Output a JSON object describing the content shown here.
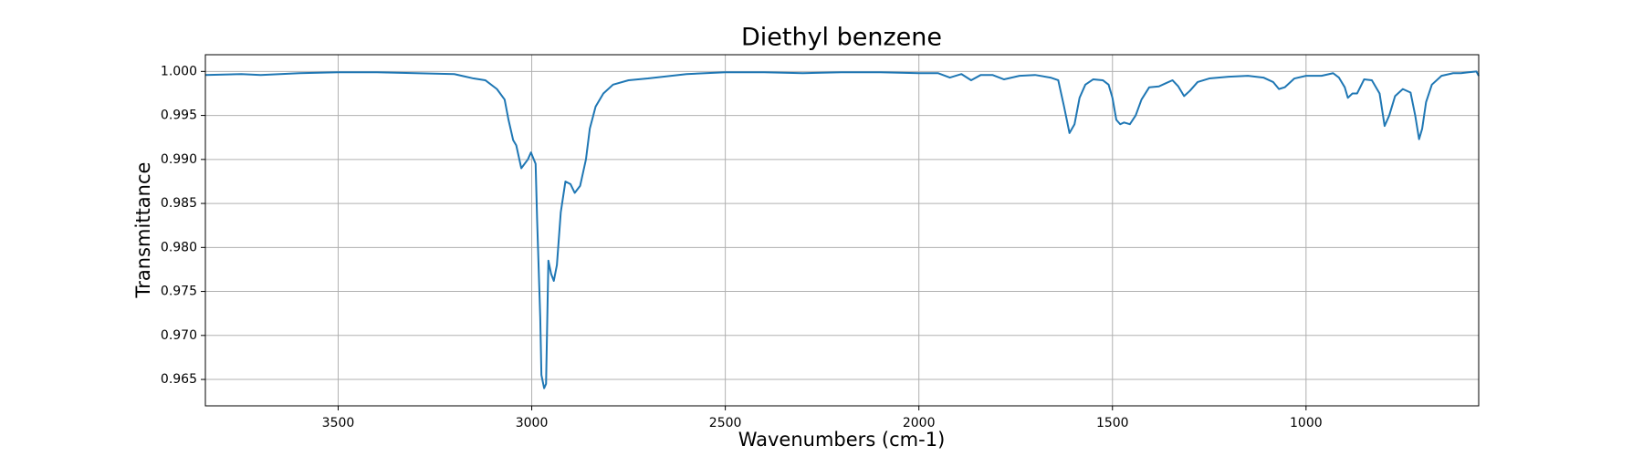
{
  "chart_data": {
    "type": "line",
    "title": "Diethyl benzene",
    "xlabel": "Wavenumbers (cm-1)",
    "ylabel": "Transmittance",
    "color": "#1f77b4",
    "grid": true,
    "xlim": [
      3843,
      554
    ],
    "ylim": [
      0.962,
      1.0019
    ],
    "xticks": [
      3500,
      3000,
      2500,
      2000,
      1500,
      1000
    ],
    "yticks": [
      0.965,
      {
        "value": 0.97,
        "label": "0.970"
      },
      0.975,
      {
        "value": 0.98,
        "label": "0.980"
      },
      0.985,
      {
        "value": 0.99,
        "label": "0.990"
      },
      0.995,
      {
        "value": 1.0,
        "label": "1.000"
      }
    ],
    "x": [
      3843,
      3750,
      3700,
      3600,
      3500,
      3400,
      3300,
      3200,
      3150,
      3120,
      3090,
      3070,
      3060,
      3048,
      3040,
      3027,
      3010,
      3002,
      2990,
      2986,
      2978,
      2975,
      2968,
      2963,
      2957,
      2950,
      2943,
      2935,
      2925,
      2913,
      2900,
      2889,
      2875,
      2860,
      2850,
      2835,
      2815,
      2790,
      2750,
      2700,
      2600,
      2500,
      2400,
      2300,
      2200,
      2100,
      2000,
      1950,
      1920,
      1890,
      1865,
      1840,
      1810,
      1780,
      1740,
      1700,
      1660,
      1640,
      1625,
      1611,
      1598,
      1585,
      1570,
      1550,
      1525,
      1510,
      1500,
      1490,
      1480,
      1470,
      1455,
      1440,
      1425,
      1405,
      1380,
      1365,
      1345,
      1330,
      1315,
      1300,
      1280,
      1250,
      1200,
      1150,
      1110,
      1085,
      1070,
      1055,
      1030,
      1000,
      960,
      930,
      915,
      900,
      892,
      880,
      868,
      850,
      830,
      810,
      797,
      785,
      770,
      750,
      730,
      718,
      708,
      700,
      690,
      675,
      650,
      620,
      600,
      580,
      560,
      554
    ],
    "values": [
      0.9996,
      0.9997,
      0.9996,
      0.9998,
      0.9999,
      0.9999,
      0.9998,
      0.9997,
      0.9992,
      0.999,
      0.998,
      0.9968,
      0.9945,
      0.9922,
      0.9916,
      0.989,
      0.99,
      0.9908,
      0.9895,
      0.983,
      0.972,
      0.9655,
      0.964,
      0.9645,
      0.9785,
      0.977,
      0.9762,
      0.978,
      0.984,
      0.9875,
      0.9872,
      0.9862,
      0.987,
      0.99,
      0.9935,
      0.996,
      0.9975,
      0.9985,
      0.999,
      0.9992,
      0.9997,
      0.9999,
      0.9999,
      0.9998,
      0.9999,
      0.9999,
      0.9998,
      0.9998,
      0.9993,
      0.9997,
      0.999,
      0.9996,
      0.9996,
      0.9991,
      0.9995,
      0.9996,
      0.9993,
      0.999,
      0.996,
      0.993,
      0.994,
      0.997,
      0.9985,
      0.9991,
      0.999,
      0.9985,
      0.997,
      0.9945,
      0.994,
      0.9942,
      0.994,
      0.995,
      0.9968,
      0.9982,
      0.9983,
      0.9986,
      0.999,
      0.9983,
      0.9972,
      0.9978,
      0.9988,
      0.9992,
      0.9994,
      0.9995,
      0.9993,
      0.9988,
      0.998,
      0.9982,
      0.9992,
      0.9995,
      0.9995,
      0.9998,
      0.9993,
      0.9982,
      0.997,
      0.9975,
      0.9975,
      0.9991,
      0.999,
      0.9975,
      0.9938,
      0.995,
      0.9972,
      0.998,
      0.9976,
      0.995,
      0.9923,
      0.9935,
      0.9965,
      0.9985,
      0.9995,
      0.9998,
      0.9998,
      0.9999,
      1.0,
      0.9995
    ]
  }
}
